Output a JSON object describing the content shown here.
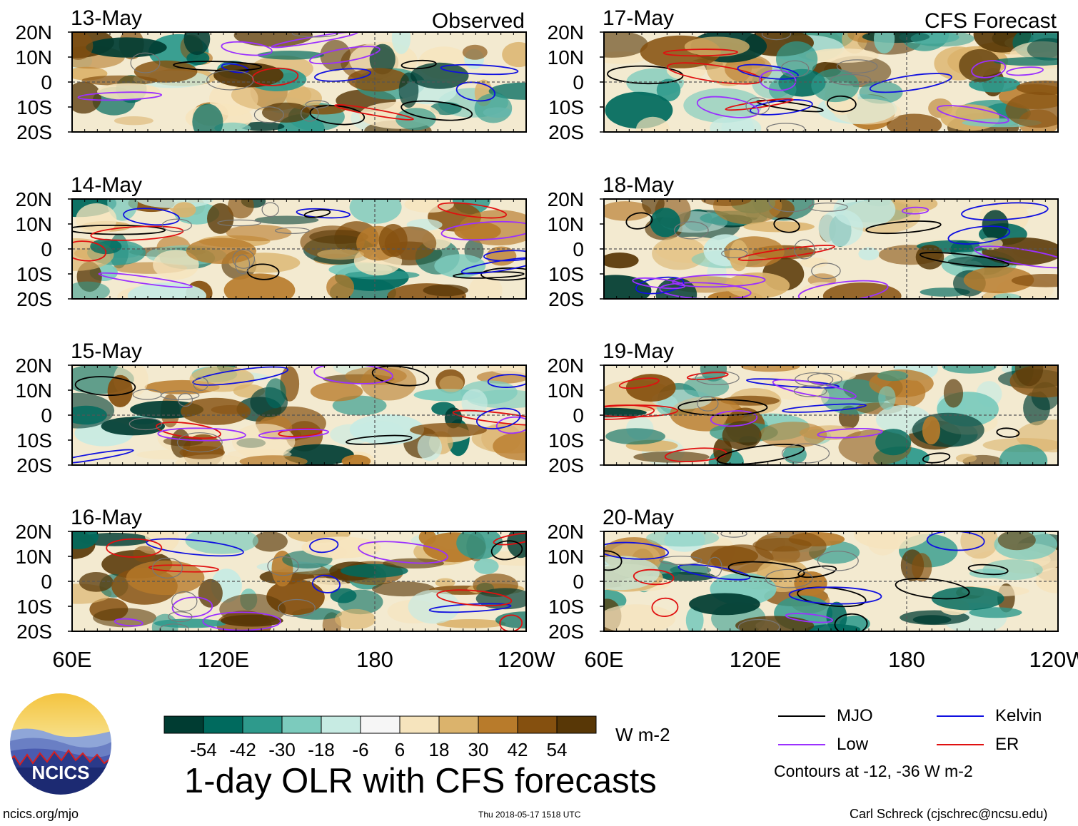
{
  "chart_data": {
    "type": "heatmap",
    "title": "1-day OLR with CFS forecasts",
    "variable": "OLR anomaly",
    "units": "W m-2",
    "observed_label": "Observed",
    "forecast_label": "CFS Forecast",
    "x_axis": {
      "range": [
        "60E",
        "120W"
      ],
      "ticks": [
        "60E",
        "120E",
        "180",
        "120W"
      ]
    },
    "y_axis": {
      "range": [
        "20S",
        "20N"
      ],
      "ticks": [
        "20N",
        "10N",
        "0",
        "10S",
        "20S"
      ]
    },
    "panels": [
      {
        "date": "13-May",
        "source": "Observed"
      },
      {
        "date": "14-May",
        "source": "Observed"
      },
      {
        "date": "15-May",
        "source": "Observed"
      },
      {
        "date": "16-May",
        "source": "Observed"
      },
      {
        "date": "17-May",
        "source": "CFS Forecast"
      },
      {
        "date": "18-May",
        "source": "CFS Forecast"
      },
      {
        "date": "19-May",
        "source": "CFS Forecast"
      },
      {
        "date": "20-May",
        "source": "CFS Forecast"
      }
    ],
    "colorbar": {
      "labels": [
        "-54",
        "-42",
        "-30",
        "-18",
        "-6",
        "6",
        "18",
        "30",
        "42",
        "54"
      ],
      "colors": [
        "#003c32",
        "#006a5e",
        "#2e9a8c",
        "#7ccbbd",
        "#c7ebe3",
        "#f6f6f6",
        "#f6e4bd",
        "#dbb36c",
        "#b87b2b",
        "#85500f",
        "#583706"
      ]
    },
    "contour_legend": [
      {
        "label": "MJO",
        "color": "#000000"
      },
      {
        "label": "Kelvin",
        "color": "#1010e0"
      },
      {
        "label": "Low",
        "color": "#9b30ff"
      },
      {
        "label": "ER",
        "color": "#e01010"
      }
    ],
    "contour_note": "Contours at -12, -36 W m-2"
  },
  "footer": {
    "url": "ncics.org/mjo",
    "timestamp": "Thu 2018-05-17 1518 UTC",
    "credit": "Carl Schreck (cjschrec@ncsu.edu)"
  },
  "logo": {
    "text": "NCICS"
  }
}
